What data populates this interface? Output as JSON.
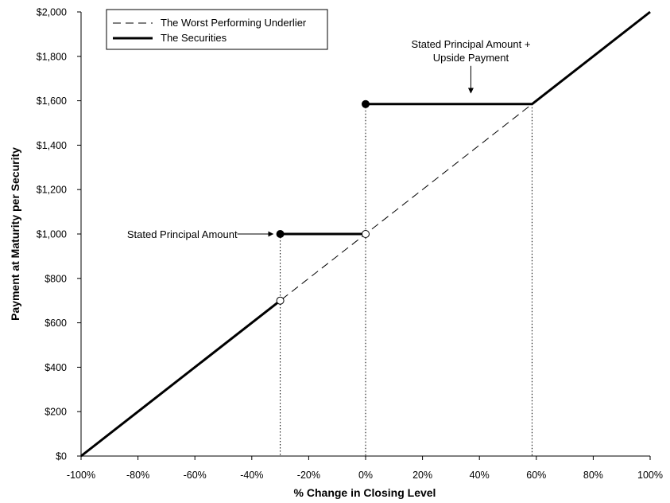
{
  "chart_data": {
    "type": "line",
    "xlabel": "% Change in Closing Level",
    "ylabel": "Payment at Maturity per Security",
    "xlim": [
      -100,
      100
    ],
    "ylim": [
      0,
      2000
    ],
    "x_ticks": [
      {
        "value": -100,
        "label": "-100%"
      },
      {
        "value": -80,
        "label": "-80%"
      },
      {
        "value": -60,
        "label": "-60%"
      },
      {
        "value": -40,
        "label": "-40%"
      },
      {
        "value": -20,
        "label": "-20%"
      },
      {
        "value": 0,
        "label": "0%"
      },
      {
        "value": 20,
        "label": "20%"
      },
      {
        "value": 40,
        "label": "40%"
      },
      {
        "value": 60,
        "label": "60%"
      },
      {
        "value": 80,
        "label": "80%"
      },
      {
        "value": 100,
        "label": "100%"
      }
    ],
    "y_ticks": [
      {
        "value": 0,
        "label": "$0"
      },
      {
        "value": 200,
        "label": "$200"
      },
      {
        "value": 400,
        "label": "$400"
      },
      {
        "value": 600,
        "label": "$600"
      },
      {
        "value": 800,
        "label": "$800"
      },
      {
        "value": 1000,
        "label": "$1,000"
      },
      {
        "value": 1200,
        "label": "$1,200"
      },
      {
        "value": 1400,
        "label": "$1,400"
      },
      {
        "value": 1600,
        "label": "$1,600"
      },
      {
        "value": 1800,
        "label": "$1,800"
      },
      {
        "value": 2000,
        "label": "$2,000"
      }
    ],
    "grid": false,
    "legend_position": "top-left",
    "series": [
      {
        "name": "The Worst Performing Underlier",
        "style": "dashed",
        "color": "#000000",
        "points": [
          [
            -100,
            0
          ],
          [
            100,
            2000
          ]
        ]
      },
      {
        "name": "The Securities",
        "style": "solid",
        "color": "#000000",
        "segments": [
          [
            [
              -100,
              0
            ],
            [
              -30,
              700
            ]
          ],
          [
            [
              -30,
              1000
            ],
            [
              0,
              1000
            ]
          ],
          [
            [
              0,
              1585
            ],
            [
              58.5,
              1585
            ],
            [
              100,
              2000
            ]
          ]
        ]
      }
    ],
    "markers": [
      {
        "x": -30,
        "y": 700,
        "fill": "open"
      },
      {
        "x": -30,
        "y": 1000,
        "fill": "filled"
      },
      {
        "x": 0,
        "y": 1000,
        "fill": "open"
      },
      {
        "x": 0,
        "y": 1585,
        "fill": "filled"
      }
    ],
    "vertical_guides": [
      {
        "x": -30,
        "y_top": 1000
      },
      {
        "x": 0,
        "y_top": 1585
      },
      {
        "x": 58.5,
        "y_top": 1585
      }
    ],
    "annotations": [
      {
        "id": "stated-principal",
        "lines": [
          "Stated Principal Amount"
        ],
        "arrow": "right",
        "target": {
          "x": -30,
          "y": 1000
        }
      },
      {
        "id": "upside",
        "lines": [
          "Stated Principal Amount +",
          "Upside Payment"
        ],
        "arrow": "down",
        "target": {
          "x": 37,
          "y": 1585
        }
      }
    ]
  }
}
